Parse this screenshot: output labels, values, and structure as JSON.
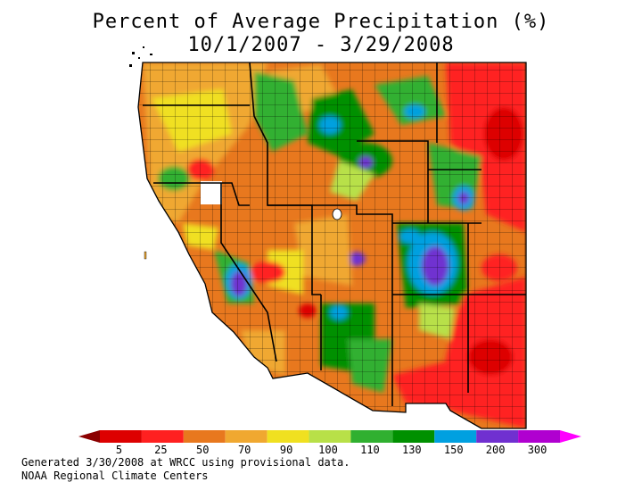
{
  "title": "Percent of Average Precipitation (%)",
  "subtitle": "10/1/2007 - 3/29/2008",
  "legend": {
    "labels": [
      "5",
      "25",
      "50",
      "70",
      "90",
      "100",
      "110",
      "130",
      "150",
      "200",
      "300"
    ],
    "colors": [
      "#8b0000",
      "#dd0000",
      "#ff2020",
      "#e8781e",
      "#f0a830",
      "#f0e020",
      "#b8e048",
      "#30b030",
      "#009000",
      "#00a0e0",
      "#7030d0",
      "#b000d0",
      "#ff00ff"
    ]
  },
  "footer": {
    "line1": "Generated 3/30/2008 at WRCC using provisional data.",
    "line2": "NOAA Regional Climate Centers"
  }
}
